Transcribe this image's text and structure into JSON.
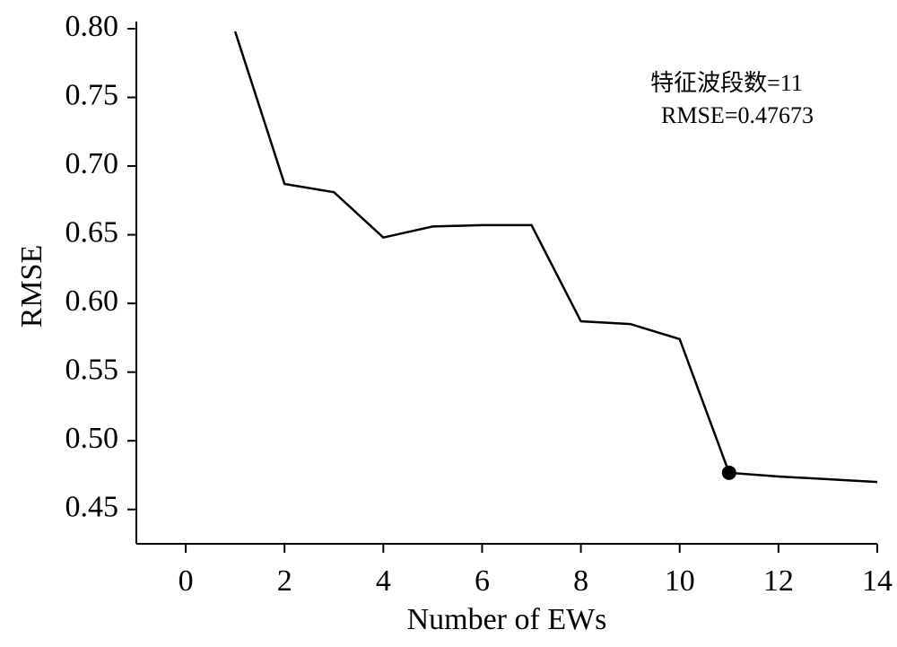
{
  "chart_data": {
    "type": "line",
    "x_label": "Number of EWs",
    "y_label": "RMSE",
    "x": [
      1,
      2,
      3,
      4,
      5,
      6,
      7,
      8,
      9,
      10,
      11,
      12,
      13,
      14
    ],
    "series": [
      {
        "name": "RMSE",
        "color": "#000000",
        "values": [
          0.798,
          0.687,
          0.681,
          0.648,
          0.656,
          0.657,
          0.657,
          0.587,
          0.585,
          0.574,
          0.47673,
          0.474,
          0.472,
          0.47
        ]
      }
    ],
    "highlight": {
      "x": 11,
      "y": 0.47673
    },
    "annotations": [
      "特征波段数=11",
      "RMSE=0.47673"
    ],
    "xlim": [
      -1,
      14
    ],
    "xticks": [
      0,
      2,
      4,
      6,
      8,
      10,
      12,
      14
    ],
    "ylim": [
      0.425,
      0.8
    ],
    "yticks": [
      {
        "value": 0.45,
        "label": "0.45"
      },
      {
        "value": 0.5,
        "label": "0.50"
      },
      {
        "value": 0.55,
        "label": "0.55"
      },
      {
        "value": 0.6,
        "label": "0.60"
      },
      {
        "value": 0.65,
        "label": "0.65"
      },
      {
        "value": 0.7,
        "label": "0.70"
      },
      {
        "value": 0.75,
        "label": "0.75"
      },
      {
        "value": 0.8,
        "label": "0.80"
      }
    ],
    "grid": false
  }
}
